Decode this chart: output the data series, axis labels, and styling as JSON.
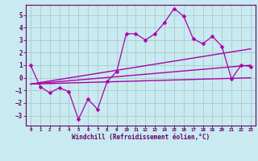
{
  "background_color": "#c8eaf0",
  "grid_color": "#aacccc",
  "line_color": "#aa00aa",
  "spine_color": "#660066",
  "xlabel": "Windchill (Refroidissement éolien,°C)",
  "ylim": [
    -3.8,
    5.8
  ],
  "xlim": [
    -0.5,
    23.5
  ],
  "yticks": [
    -3,
    -2,
    -1,
    0,
    1,
    2,
    3,
    4,
    5
  ],
  "xticks": [
    0,
    1,
    2,
    3,
    4,
    5,
    6,
    7,
    8,
    9,
    10,
    11,
    12,
    13,
    14,
    15,
    16,
    17,
    18,
    19,
    20,
    21,
    22,
    23
  ],
  "series": [
    {
      "x": [
        0,
        1,
        2,
        3,
        4,
        5,
        6,
        7,
        8,
        9,
        10,
        11,
        12,
        13,
        14,
        15,
        16,
        17,
        18,
        19,
        20,
        21,
        22,
        23
      ],
      "y": [
        1.0,
        -0.7,
        -1.2,
        -0.8,
        -1.1,
        -3.3,
        -1.7,
        -2.5,
        -0.3,
        0.5,
        3.5,
        3.5,
        3.0,
        3.5,
        4.4,
        5.5,
        4.9,
        3.1,
        2.7,
        3.3,
        2.5,
        -0.1,
        1.0,
        0.9
      ],
      "marker": "D",
      "markersize": 2.5,
      "linewidth": 0.9,
      "has_marker": true
    },
    {
      "x": [
        0,
        23
      ],
      "y": [
        -0.5,
        2.3
      ],
      "marker": null,
      "markersize": 0,
      "linewidth": 1.0,
      "has_marker": false
    },
    {
      "x": [
        0,
        23
      ],
      "y": [
        -0.5,
        1.0
      ],
      "marker": null,
      "markersize": 0,
      "linewidth": 1.0,
      "has_marker": false
    },
    {
      "x": [
        0,
        23
      ],
      "y": [
        -0.5,
        0.0
      ],
      "marker": null,
      "markersize": 0,
      "linewidth": 1.0,
      "has_marker": false
    }
  ]
}
